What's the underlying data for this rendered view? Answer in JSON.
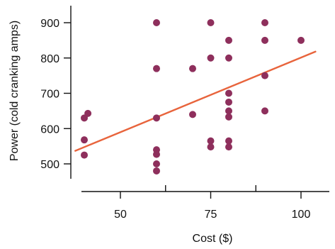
{
  "chart_data": {
    "type": "scatter",
    "title": "",
    "xlabel": "Cost ($)",
    "ylabel": "Power (cold cranking amps)",
    "xlim": [
      37,
      107
    ],
    "ylim": [
      455,
      955
    ],
    "x_ticks": [
      50,
      75,
      100
    ],
    "x_tick_labels": [
      "50",
      "75",
      "100"
    ],
    "y_ticks": [
      500,
      600,
      700,
      800,
      900
    ],
    "y_tick_labels": [
      "500",
      "600",
      "700",
      "800",
      "900"
    ],
    "grid": false,
    "legend": "none",
    "point_color": "#8e2f5c",
    "line_color": "#e8643c",
    "points": [
      {
        "x": 40,
        "y": 630
      },
      {
        "x": 41,
        "y": 643
      },
      {
        "x": 40,
        "y": 568
      },
      {
        "x": 40,
        "y": 525
      },
      {
        "x": 60,
        "y": 900
      },
      {
        "x": 60,
        "y": 770
      },
      {
        "x": 60,
        "y": 630
      },
      {
        "x": 60,
        "y": 540
      },
      {
        "x": 60,
        "y": 527
      },
      {
        "x": 60,
        "y": 500
      },
      {
        "x": 60,
        "y": 480
      },
      {
        "x": 70,
        "y": 770
      },
      {
        "x": 70,
        "y": 640
      },
      {
        "x": 75,
        "y": 900
      },
      {
        "x": 75,
        "y": 800
      },
      {
        "x": 75,
        "y": 565
      },
      {
        "x": 75,
        "y": 548
      },
      {
        "x": 80,
        "y": 850
      },
      {
        "x": 80,
        "y": 800
      },
      {
        "x": 80,
        "y": 700
      },
      {
        "x": 80,
        "y": 675
      },
      {
        "x": 80,
        "y": 650
      },
      {
        "x": 80,
        "y": 633
      },
      {
        "x": 80,
        "y": 565
      },
      {
        "x": 80,
        "y": 548
      },
      {
        "x": 90,
        "y": 900
      },
      {
        "x": 90,
        "y": 850
      },
      {
        "x": 90,
        "y": 750
      },
      {
        "x": 90,
        "y": 650
      },
      {
        "x": 100,
        "y": 850
      }
    ],
    "regression_line": {
      "x": [
        37.5,
        104
      ],
      "y": [
        537,
        818
      ]
    }
  }
}
